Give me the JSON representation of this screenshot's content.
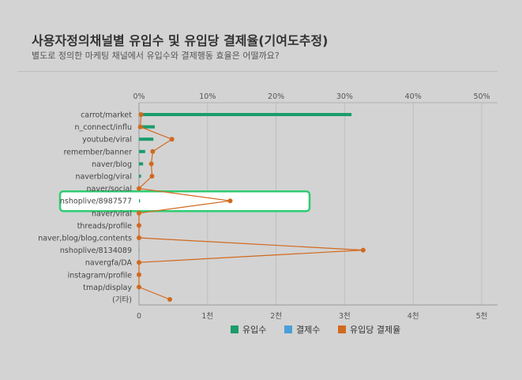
{
  "header": {
    "title": "사용자정의채널별 유입수 및 유입당 결제율(기여도추정)",
    "subtitle": "별도로 정의한 마케팅 채널에서 유입수와 결제행동 효율은 어떨까요?"
  },
  "chart_data": {
    "type": "bar",
    "orientation": "horizontal",
    "categories": [
      "carrot/market",
      "n_connect/influ",
      "youtube/viral",
      "remember/banner",
      "naver/blog",
      "naverblog/viral",
      "naver/social",
      "nshoplive/8987577",
      "naver/viral",
      "threads/profile",
      "naver,blog/blog,contents",
      "nshoplive/8134089",
      "navergfa/DA",
      "instagram/profile",
      "tmap/display",
      "(기타)"
    ],
    "series": [
      {
        "name": "유입수",
        "kind": "bar",
        "axis": "bottom",
        "color": "#1a9c6b",
        "values": [
          3100,
          230,
          210,
          90,
          60,
          30,
          20,
          15,
          12,
          8,
          5,
          5,
          4,
          3,
          3,
          0
        ]
      },
      {
        "name": "결제수",
        "kind": "bar",
        "axis": "bottom",
        "color": "#4a9fd6",
        "values": [
          0,
          0,
          0,
          0,
          0,
          0,
          0,
          0,
          0,
          0,
          0,
          0,
          0,
          0,
          0,
          0
        ]
      },
      {
        "name": "유입당 결제율",
        "kind": "line",
        "axis": "top",
        "color": "#d2691e",
        "values": [
          0.3,
          0.2,
          4.8,
          2.0,
          1.8,
          1.9,
          0.0,
          13.3,
          0.0,
          0.0,
          0.0,
          32.7,
          0.0,
          0.0,
          0.0,
          4.5
        ]
      }
    ],
    "top_axis": {
      "ticks": [
        "0%",
        "10%",
        "20%",
        "30%",
        "40%",
        "50%"
      ],
      "range": [
        0,
        50
      ]
    },
    "bottom_axis": {
      "ticks": [
        "0",
        "1천",
        "2천",
        "3천",
        "4천",
        "5천"
      ],
      "range": [
        0,
        5000
      ]
    },
    "grid": true,
    "legend_position": "bottom",
    "highlight_category": "nshoplive/8987577",
    "highlight_color": "#2ecc71"
  }
}
